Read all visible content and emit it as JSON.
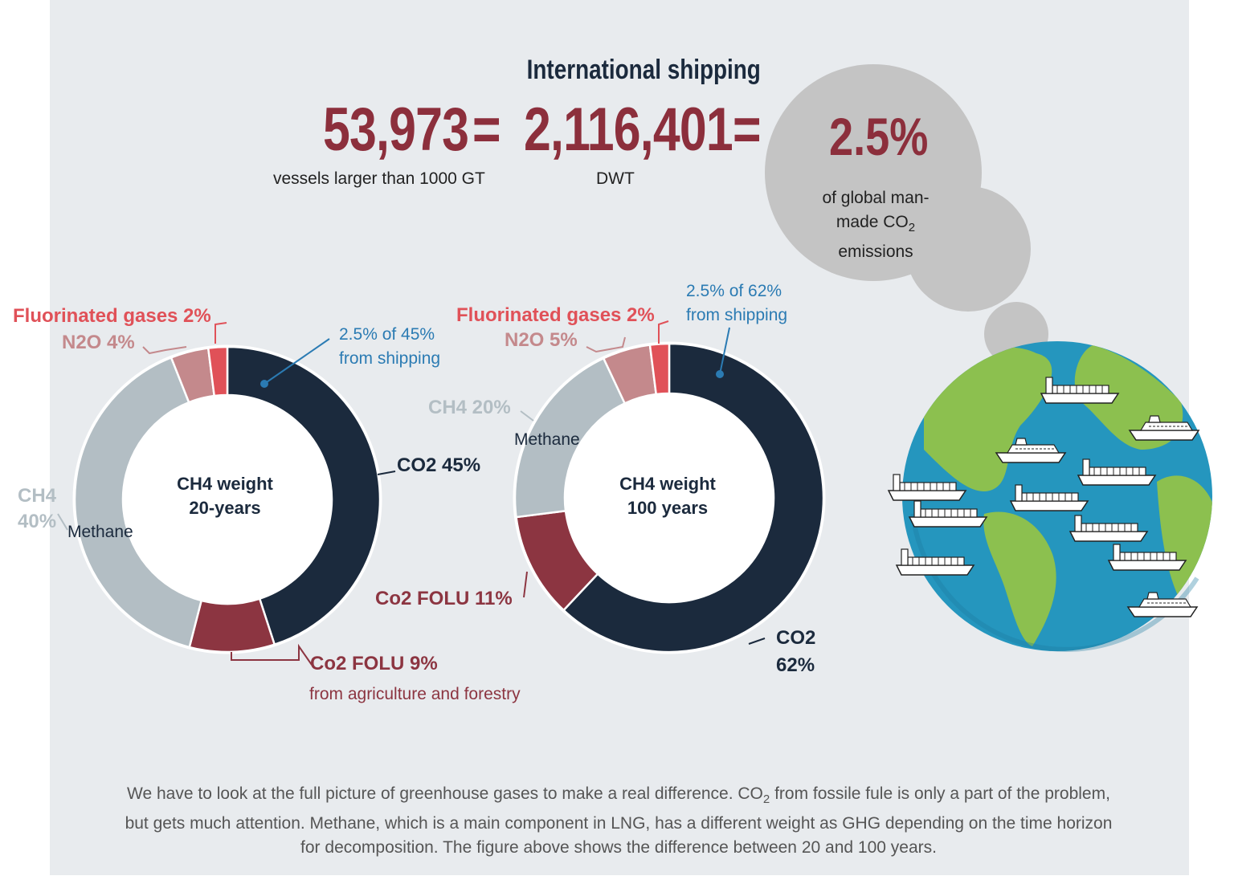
{
  "header": {
    "title": "International shipping",
    "vessels": "53,973",
    "equals": "=",
    "dwt": "2,116,401",
    "share": "2.5%",
    "vessels_label": "vessels larger than 1000 GT",
    "dwt_label": "DWT",
    "share_label_1": "of global man-",
    "share_label_2": "made CO",
    "share_label_sub": "2",
    "share_label_3": "emissions"
  },
  "colors": {
    "co2": "#1b2a3d",
    "co2_folu": "#8c3541",
    "ch4": "#b3bec4",
    "n2o": "#c4898c",
    "fgas": "#e05158",
    "shipping_note": "#2b7bb3",
    "background": "#e8ebee"
  },
  "chart_data": [
    {
      "type": "pie",
      "title": "CH4 weight 20-years",
      "center_label_1": "CH4 weight",
      "center_label_2": "20-years",
      "slices": [
        {
          "label": "CO2",
          "value": 45
        },
        {
          "label": "Co2 FOLU",
          "value": 9
        },
        {
          "label": "CH4",
          "value": 40
        },
        {
          "label": "N2O",
          "value": 4
        },
        {
          "label": "Fluorinated gases",
          "value": 2
        }
      ],
      "labels": {
        "co2": "CO2 45%",
        "folu": "Co2 FOLU 9%",
        "folu_note": "from agriculture and forestry",
        "ch4_1": "CH4",
        "ch4_2": "40%",
        "methane": "Methane",
        "n2o": "N2O 4%",
        "fgas": "Fluorinated gases 2%",
        "shipping_1": "2.5% of 45%",
        "shipping_2": "from shipping"
      }
    },
    {
      "type": "pie",
      "title": "CH4 weight 100 years",
      "center_label_1": "CH4 weight",
      "center_label_2": "100 years",
      "slices": [
        {
          "label": "CO2",
          "value": 62
        },
        {
          "label": "Co2 FOLU",
          "value": 11
        },
        {
          "label": "CH4",
          "value": 20
        },
        {
          "label": "N2O",
          "value": 5
        },
        {
          "label": "Fluorinated gases",
          "value": 2
        }
      ],
      "labels": {
        "co2_1": "CO2",
        "co2_2": "62%",
        "folu": "Co2 FOLU 11%",
        "ch4": "CH4 20%",
        "methane": "Methane",
        "n2o": "N2O 5%",
        "fgas": "Fluorinated gases 2%",
        "shipping_1": "2.5% of 62%",
        "shipping_2": "from shipping"
      }
    }
  ],
  "footer": {
    "text_1": "We have to look at the full picture of greenhouse gases to make a real difference. CO",
    "text_sub": "2",
    "text_2": " from fossile fule is only a part of the problem, but gets much attention. Methane, which is a main component in LNG, has a different weight as GHG depending on the time horizon for decomposition. The figure above shows the difference between 20 and 100 years."
  },
  "illustration": {
    "globe": "earth-globe-icon",
    "ships": "ship-icon"
  }
}
